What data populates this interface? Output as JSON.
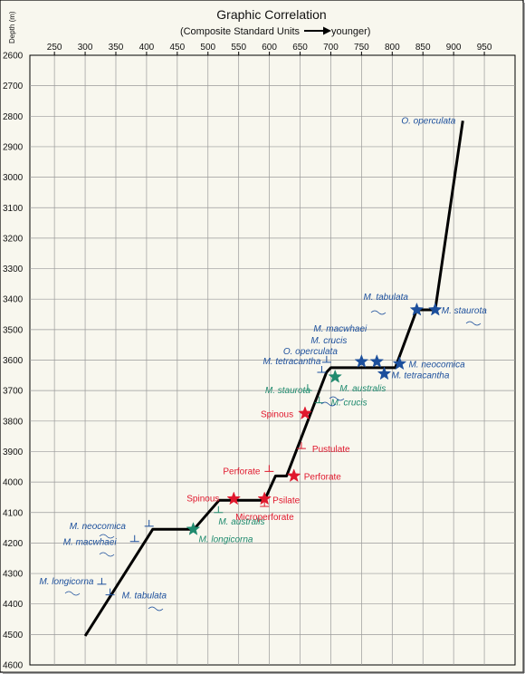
{
  "chart_data": {
    "type": "line",
    "title": "Graphic Correlation",
    "subtitle_left": "(Composite Standard Units",
    "subtitle_right": "younger)",
    "ylabel": "Depth (m)",
    "xlim": [
      210,
      1000
    ],
    "ylim": [
      2600,
      4600
    ],
    "x_ticks": [
      250,
      300,
      350,
      400,
      450,
      500,
      550,
      600,
      650,
      700,
      750,
      800,
      850,
      900,
      950
    ],
    "y_ticks": [
      2600,
      2700,
      2800,
      2900,
      3000,
      3100,
      3200,
      3300,
      3400,
      3500,
      3600,
      3700,
      3800,
      3900,
      4000,
      4100,
      4200,
      4300,
      4400,
      4500,
      4600
    ],
    "grid": true,
    "colors": {
      "line": "#000000",
      "blue": "#1c4f9c",
      "green": "#1f8a6e",
      "red": "#e0182d",
      "grid": "#9a9a9a",
      "background": "#f8f7ee"
    },
    "line_of_correlation": [
      {
        "x": 300,
        "y": 4505
      },
      {
        "x": 410,
        "y": 4155
      },
      {
        "x": 477,
        "y": 4155
      },
      {
        "x": 518,
        "y": 4060
      },
      {
        "x": 592,
        "y": 4060
      },
      {
        "x": 610,
        "y": 3980
      },
      {
        "x": 628,
        "y": 3980
      },
      {
        "x": 693,
        "y": 3640
      },
      {
        "x": 700,
        "y": 3625
      },
      {
        "x": 805,
        "y": 3625
      },
      {
        "x": 840,
        "y": 3435
      },
      {
        "x": 870,
        "y": 3435
      },
      {
        "x": 915,
        "y": 2815
      }
    ],
    "events": [
      {
        "label": "O. operculata",
        "color": "blue",
        "marker": "none",
        "x": 915,
        "y": 2815
      },
      {
        "label": "M. tabulata",
        "color": "blue",
        "marker": "star",
        "x": 840,
        "y": 3435
      },
      {
        "label": "M. staurota",
        "color": "blue",
        "marker": "star",
        "x": 870,
        "y": 3435
      },
      {
        "label": "M. macwhaei",
        "color": "blue",
        "marker": "star",
        "x": 750,
        "y": 3605
      },
      {
        "label": "M. crucis",
        "color": "blue",
        "marker": "star",
        "x": 775,
        "y": 3605
      },
      {
        "label": "M. neocomica",
        "color": "blue",
        "marker": "star",
        "x": 812,
        "y": 3612
      },
      {
        "label": "M. tetracantha",
        "color": "blue",
        "marker": "star",
        "x": 787,
        "y": 3645
      },
      {
        "label": "O. operculata",
        "color": "blue",
        "marker": "none",
        "x": 705,
        "y": 3610
      },
      {
        "label": "M. tetracantha",
        "color": "blue",
        "marker": "none",
        "x": 700,
        "y": 3640
      },
      {
        "label": "M. australis",
        "color": "green",
        "marker": "star",
        "x": 707,
        "y": 3655
      },
      {
        "label": "M. staurota",
        "color": "green",
        "marker": "none",
        "x": 680,
        "y": 3700
      },
      {
        "label": "M. crucis",
        "color": "green",
        "marker": "none",
        "x": 690,
        "y": 3740
      },
      {
        "label": "Spinous",
        "color": "red",
        "marker": "star",
        "x": 658,
        "y": 3775
      },
      {
        "label": "Pustulate",
        "color": "red",
        "marker": "none",
        "x": 655,
        "y": 3890
      },
      {
        "label": "Perforate",
        "color": "red",
        "marker": "star",
        "x": 640,
        "y": 3980
      },
      {
        "label": "Perforate",
        "color": "red",
        "marker": "none",
        "x": 607,
        "y": 3965
      },
      {
        "label": "Spinous",
        "color": "red",
        "marker": "star",
        "x": 542,
        "y": 4055
      },
      {
        "label": "Psilate",
        "color": "red",
        "marker": "star",
        "x": 592,
        "y": 4055
      },
      {
        "label": "Microperforate",
        "color": "red",
        "marker": "none",
        "x": 592,
        "y": 4080
      },
      {
        "label": "M. australis",
        "color": "green",
        "marker": "none",
        "x": 520,
        "y": 4100
      },
      {
        "label": "M. longicorna",
        "color": "green",
        "marker": "star",
        "x": 476,
        "y": 4155
      },
      {
        "label": "M. neocomica",
        "color": "blue",
        "marker": "none",
        "x": 410,
        "y": 4145
      },
      {
        "label": "M. macwhaei",
        "color": "blue",
        "marker": "none",
        "x": 385,
        "y": 4195
      },
      {
        "label": "M. longicorna",
        "color": "blue",
        "marker": "none",
        "x": 330,
        "y": 4335
      },
      {
        "label": "M. tabulata",
        "color": "blue",
        "marker": "none",
        "x": 345,
        "y": 4370
      }
    ]
  }
}
